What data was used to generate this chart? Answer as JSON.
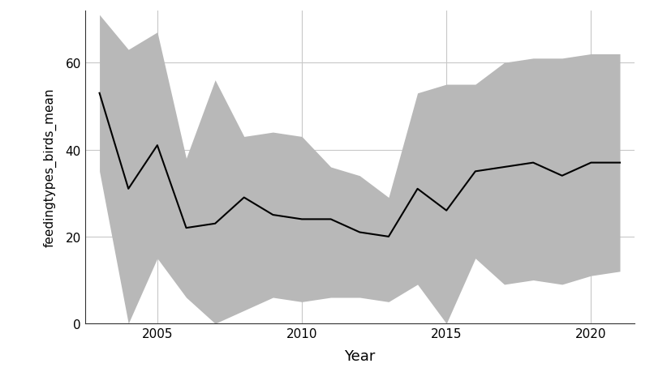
{
  "years": [
    2003,
    2004,
    2005,
    2006,
    2007,
    2008,
    2009,
    2010,
    2011,
    2012,
    2013,
    2014,
    2015,
    2016,
    2017,
    2018,
    2019,
    2020,
    2021
  ],
  "mean": [
    53,
    31,
    41,
    22,
    23,
    29,
    25,
    24,
    24,
    21,
    20,
    31,
    26,
    35,
    36,
    37,
    34,
    37,
    37
  ],
  "upper": [
    71,
    63,
    67,
    38,
    56,
    43,
    44,
    43,
    36,
    34,
    29,
    53,
    55,
    55,
    60,
    61,
    61,
    62,
    62
  ],
  "lower": [
    35,
    0,
    15,
    6,
    0,
    3,
    6,
    5,
    6,
    6,
    5,
    9,
    0,
    15,
    9,
    10,
    9,
    11,
    12
  ],
  "ylabel": "feedingtypes_birds_mean",
  "xlabel": "Year",
  "xlim": [
    2002.5,
    2021.5
  ],
  "ylim": [
    0,
    72
  ],
  "yticks": [
    0,
    20,
    40,
    60
  ],
  "xticks": [
    2005,
    2010,
    2015,
    2020
  ],
  "bg_color": "#ffffff",
  "panel_bg": "#ffffff",
  "grid_color": "#c8c8c8",
  "line_color": "#000000",
  "shade_color": "#b8b8b8",
  "shade_alpha": 1.0
}
